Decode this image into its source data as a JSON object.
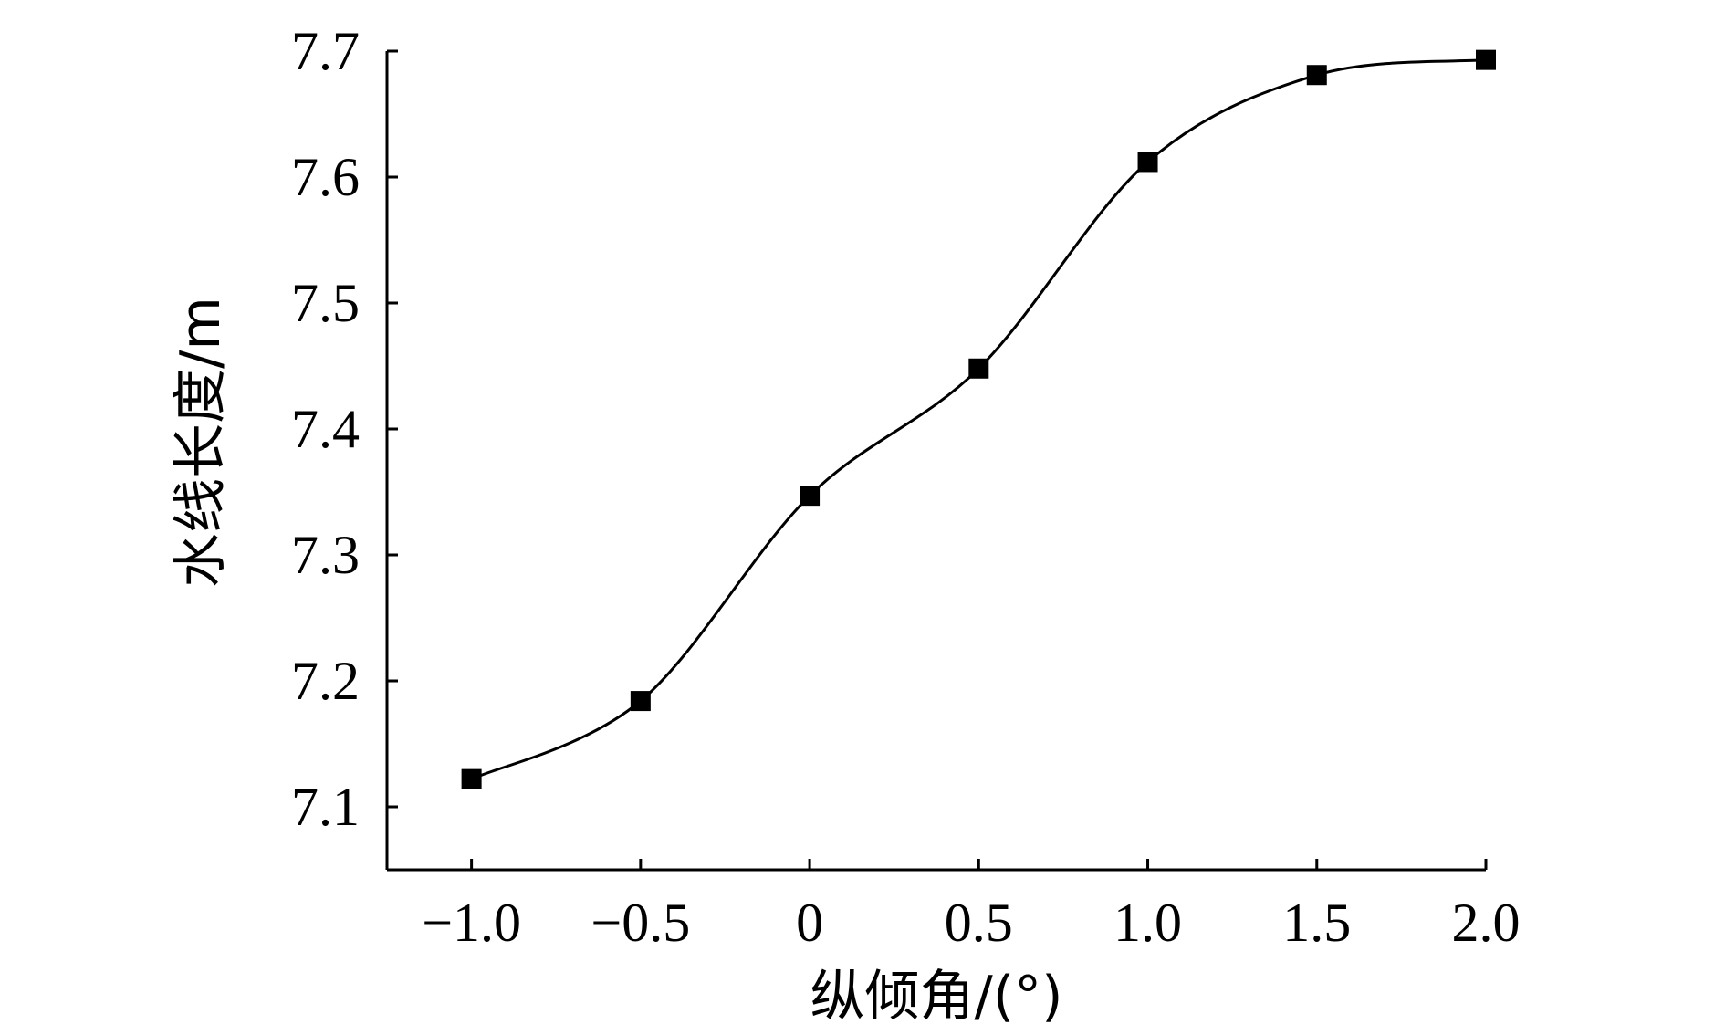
{
  "chart_data": {
    "type": "line",
    "title": "",
    "xlabel": "纵倾角/(°)",
    "ylabel": "水线长度/m",
    "xlim": [
      -1.25,
      2.0
    ],
    "ylim": [
      7.05,
      7.7
    ],
    "x_ticks": [
      -1.0,
      -0.5,
      0,
      0.5,
      1.0,
      1.5,
      2.0
    ],
    "x_tick_labels": [
      "−1.0",
      "−0.5",
      "0",
      "0.5",
      "1.0",
      "1.5",
      "2.0"
    ],
    "y_ticks": [
      7.1,
      7.2,
      7.3,
      7.4,
      7.5,
      7.6,
      7.7
    ],
    "y_tick_labels": [
      "7.1",
      "7.2",
      "7.3",
      "7.4",
      "7.5",
      "7.6",
      "7.7"
    ],
    "grid": false,
    "series": [
      {
        "x": [
          -1.0,
          -0.5,
          0,
          0.5,
          1.0,
          1.5,
          2.0
        ],
        "values": [
          7.122,
          7.184,
          7.347,
          7.448,
          7.612,
          7.681,
          7.693
        ],
        "marker": "square",
        "color": "#000000"
      }
    ]
  }
}
